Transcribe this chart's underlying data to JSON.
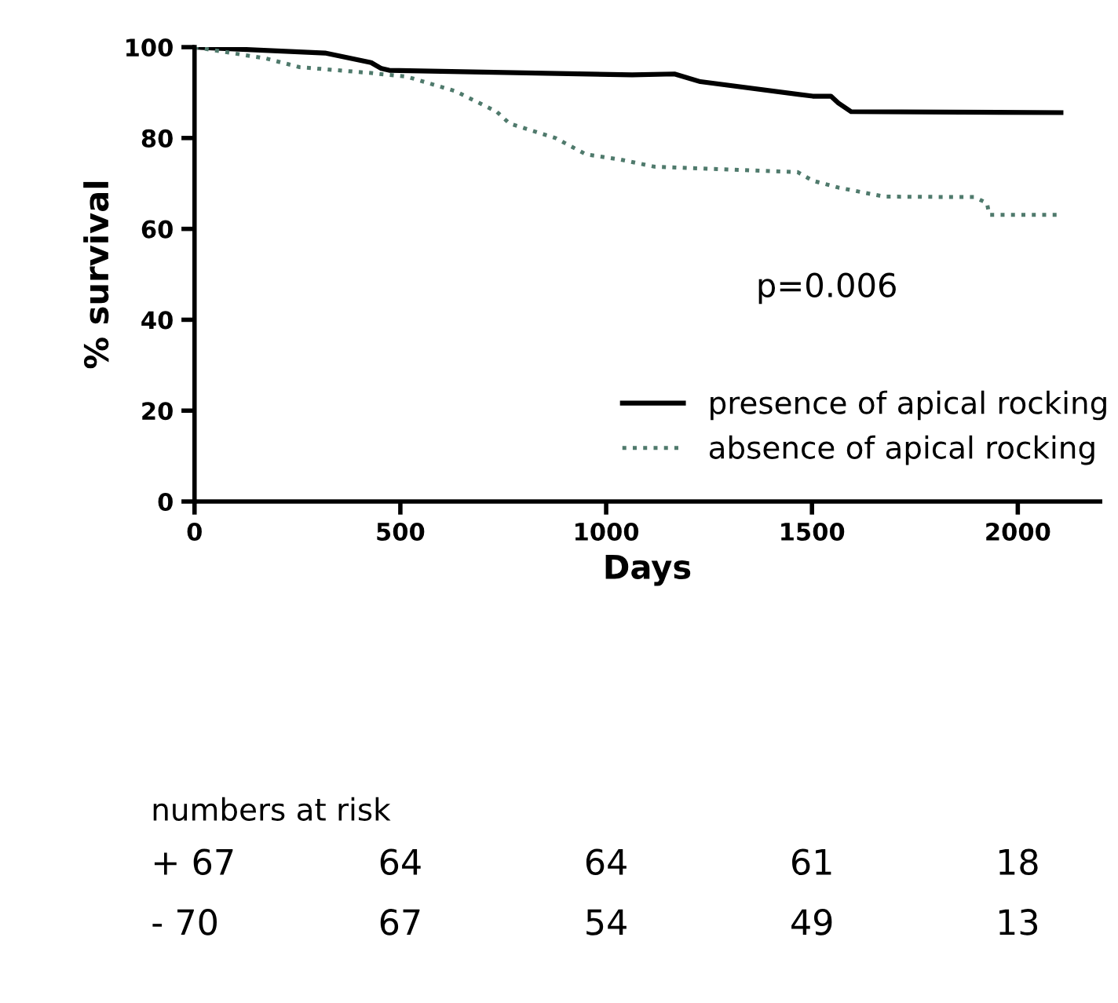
{
  "chart_data": {
    "type": "line",
    "xlabel": "Days",
    "ylabel": "% survival",
    "xlim": [
      0,
      2200
    ],
    "xticks": [
      0,
      500,
      1000,
      1500,
      2000
    ],
    "ylim": [
      0,
      100
    ],
    "yticks": [
      0,
      20,
      40,
      60,
      80,
      100
    ],
    "grid": false,
    "legend": "bottom right",
    "marker": "none",
    "series": [
      {
        "name": "presence of apical rocking",
        "color": "#000000",
        "line_style": "solid",
        "x": [
          0,
          317,
          429,
          454,
          473,
          1063,
          1166,
          1229,
          1502,
          1546,
          1564,
          1595,
          2105
        ],
        "values": [
          100,
          98.7,
          96.6,
          95.3,
          94.9,
          93.9,
          94.1,
          92.4,
          89.2,
          89.2,
          87.7,
          85.8,
          85.6
        ]
      },
      {
        "name": "absence of apical rocking",
        "color": "#4f7a6c",
        "line_style": "dotted",
        "x": [
          0,
          174,
          255,
          429,
          516,
          634,
          734,
          765,
          877,
          951,
          1032,
          1117,
          1465,
          1502,
          1564,
          1676,
          1894,
          1925,
          1931,
          2105
        ],
        "values": [
          100,
          97.5,
          95.6,
          94.3,
          93.5,
          90.3,
          85.8,
          83.2,
          80,
          76.4,
          75.3,
          73.7,
          72.5,
          70.6,
          69.1,
          67.1,
          67,
          65.7,
          63.1,
          63.1
        ]
      }
    ],
    "annotations": [
      "p=0.006",
      "numbers at risk",
      "+ 67",
      "64",
      "64",
      "61",
      "18",
      "- 70",
      "67",
      "54",
      "49",
      "13"
    ]
  }
}
